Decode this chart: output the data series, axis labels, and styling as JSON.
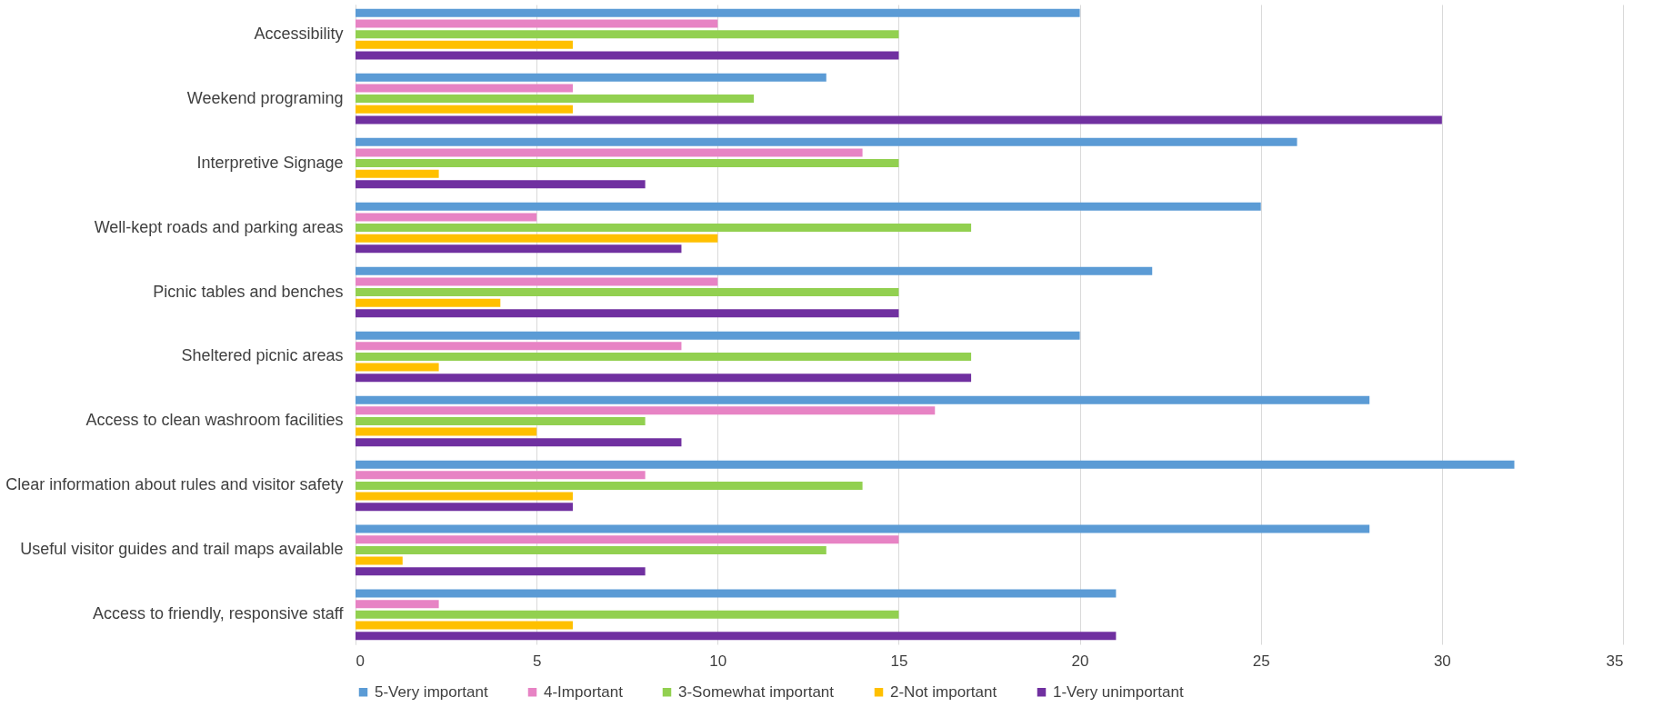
{
  "chart_data": {
    "type": "bar",
    "orientation": "horizontal",
    "categories": [
      "Accessibility",
      "Weekend programing ",
      "Interpretive Signage",
      "Well-kept roads and parking areas",
      "Picnic tables and benches",
      "Sheltered picnic areas",
      "Access to clean washroom facilities",
      "Clear information about rules and visitor safety",
      "Useful visitor guides and trail maps available",
      "Access to friendly, responsive staff"
    ],
    "series": [
      {
        "name": "5-Very important",
        "color": "#5b9bd5",
        "values": [
          20,
          13,
          26,
          25,
          22,
          20,
          28,
          32,
          28,
          21
        ]
      },
      {
        "name": "4-Important",
        "color": "#e783c4",
        "values": [
          10,
          6,
          14,
          5,
          10,
          9,
          16,
          8,
          15,
          2.3
        ]
      },
      {
        "name": "3-Somewhat important",
        "color": "#92d050",
        "values": [
          15,
          11,
          15,
          17,
          15,
          17,
          8,
          14,
          13,
          15
        ]
      },
      {
        "name": "2-Not important",
        "color": "#ffc000",
        "values": [
          6,
          6,
          2.3,
          10,
          4,
          2.3,
          5,
          6,
          1.3,
          6
        ]
      },
      {
        "name": "1-Very unimportant",
        "color": "#7030a0",
        "values": [
          15,
          30,
          8,
          9,
          15,
          17,
          9,
          6,
          8,
          21
        ]
      }
    ],
    "xlim": [
      0,
      35
    ],
    "xticks": [
      0,
      5,
      10,
      15,
      20,
      25,
      30,
      35
    ],
    "grid": "x",
    "legend": "bottom"
  }
}
